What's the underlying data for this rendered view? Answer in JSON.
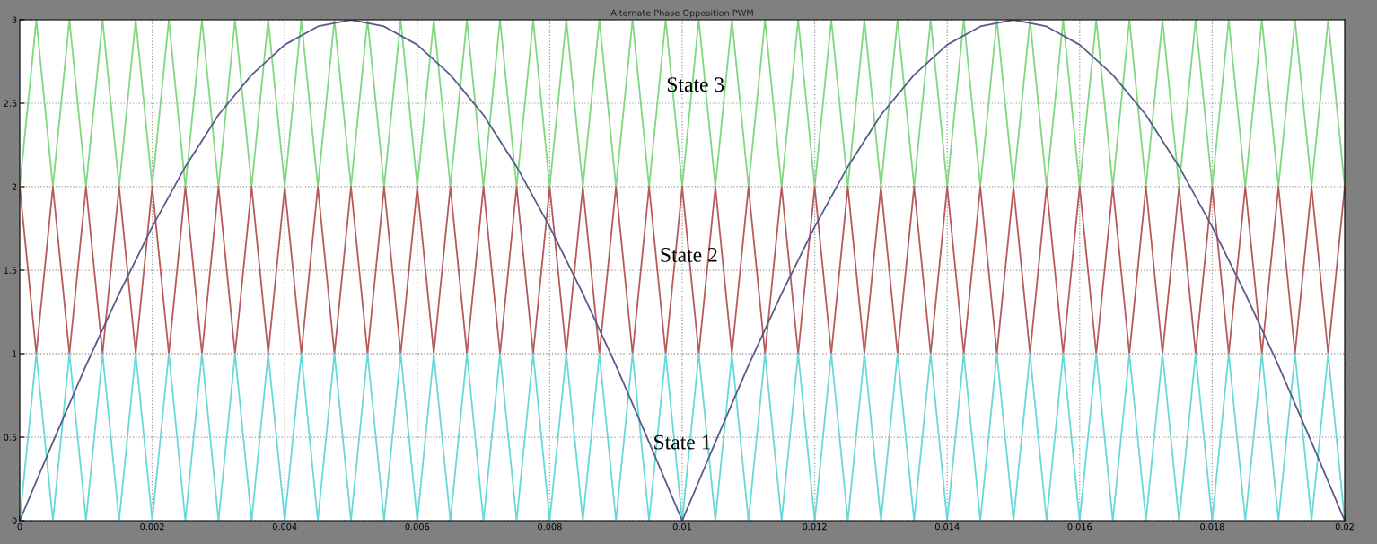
{
  "chart_data": {
    "type": "line",
    "title": "Alternate Phase Opposition PWM",
    "x": [
      0,
      0.00025,
      0.0005,
      0.00075,
      0.001,
      0.00125,
      0.0015,
      0.00175,
      0.002,
      0.00225,
      0.0025,
      0.00275,
      0.003,
      0.00325,
      0.0035,
      0.00375,
      0.004,
      0.00425,
      0.0045,
      0.00475,
      0.005,
      0.00525,
      0.0055,
      0.00575,
      0.006,
      0.00625,
      0.0065,
      0.00675,
      0.007,
      0.00725,
      0.0075,
      0.00775,
      0.008,
      0.00825,
      0.0085,
      0.00875,
      0.009,
      0.00925,
      0.0095,
      0.00975,
      0.01,
      0.01025,
      0.0105,
      0.01075,
      0.011,
      0.01125,
      0.0115,
      0.01175,
      0.012,
      0.01225,
      0.0125,
      0.01275,
      0.013,
      0.01325,
      0.0135,
      0.01375,
      0.014,
      0.01425,
      0.0145,
      0.01475,
      0.015,
      0.01525,
      0.0155,
      0.01575,
      0.016,
      0.01625,
      0.0165,
      0.01675,
      0.017,
      0.01725,
      0.0175,
      0.01775,
      0.018,
      0.01825,
      0.0185,
      0.01875,
      0.019,
      0.01925,
      0.0195,
      0.01975,
      0.02
    ],
    "series": [
      {
        "color": "#7fd87f",
        "values": [
          2,
          3,
          2,
          3,
          2,
          3,
          2,
          3,
          2,
          3,
          2,
          3,
          2,
          3,
          2,
          3,
          2,
          3,
          2,
          3,
          2,
          3,
          2,
          3,
          2,
          3,
          2,
          3,
          2,
          3,
          2,
          3,
          2,
          3,
          2,
          3,
          2,
          3,
          2,
          3,
          2,
          3,
          2,
          3,
          2,
          3,
          2,
          3,
          2,
          3,
          2,
          3,
          2,
          3,
          2,
          3,
          2,
          3,
          2,
          3,
          2,
          3,
          2,
          3,
          2,
          3,
          2,
          3,
          2,
          3,
          2,
          3,
          2,
          3,
          2,
          3,
          2,
          3,
          2,
          3,
          2
        ]
      },
      {
        "color": "#b65a5a",
        "values": [
          2,
          1,
          2,
          1,
          2,
          1,
          2,
          1,
          2,
          1,
          2,
          1,
          2,
          1,
          2,
          1,
          2,
          1,
          2,
          1,
          2,
          1,
          2,
          1,
          2,
          1,
          2,
          1,
          2,
          1,
          2,
          1,
          2,
          1,
          2,
          1,
          2,
          1,
          2,
          1,
          2,
          1,
          2,
          1,
          2,
          1,
          2,
          1,
          2,
          1,
          2,
          1,
          2,
          1,
          2,
          1,
          2,
          1,
          2,
          1,
          2,
          1,
          2,
          1,
          2,
          1,
          2,
          1,
          2,
          1,
          2,
          1,
          2,
          1,
          2,
          1,
          2,
          1,
          2,
          1,
          2
        ]
      },
      {
        "color": "#66d8d8",
        "values": [
          0,
          1,
          0,
          1,
          0,
          1,
          0,
          1,
          0,
          1,
          0,
          1,
          0,
          1,
          0,
          1,
          0,
          1,
          0,
          1,
          0,
          1,
          0,
          1,
          0,
          1,
          0,
          1,
          0,
          1,
          0,
          1,
          0,
          1,
          0,
          1,
          0,
          1,
          0,
          1,
          0,
          1,
          0,
          1,
          0,
          1,
          0,
          1,
          0,
          1,
          0,
          1,
          0,
          1,
          0,
          1,
          0,
          1,
          0,
          1,
          0,
          1,
          0,
          1,
          0,
          1,
          0,
          1,
          0,
          1,
          0,
          1,
          0,
          1,
          0,
          1,
          0,
          1,
          0,
          1,
          0
        ]
      },
      {
        "color": "#5a5a8c",
        "x": [
          0,
          0.0005,
          0.001,
          0.0015,
          0.002,
          0.0025,
          0.003,
          0.0035,
          0.004,
          0.0045,
          0.005,
          0.0055,
          0.006,
          0.0065,
          0.007,
          0.0075,
          0.008,
          0.0085,
          0.009,
          0.0095,
          0.01,
          0.0105,
          0.011,
          0.0115,
          0.012,
          0.0125,
          0.013,
          0.0135,
          0.014,
          0.0145,
          0.015,
          0.0155,
          0.016,
          0.0165,
          0.017,
          0.0175,
          0.018,
          0.0185,
          0.019,
          0.0195,
          0.02
        ],
        "values": [
          0,
          0.47,
          0.93,
          1.36,
          1.76,
          2.12,
          2.43,
          2.67,
          2.85,
          2.96,
          3,
          2.96,
          2.85,
          2.67,
          2.43,
          2.12,
          1.76,
          1.36,
          0.93,
          0.47,
          0,
          0.47,
          0.93,
          1.36,
          1.76,
          2.12,
          2.43,
          2.67,
          2.85,
          2.96,
          3,
          2.96,
          2.85,
          2.67,
          2.43,
          2.12,
          1.76,
          1.36,
          0.93,
          0.47,
          0
        ]
      }
    ],
    "annotations": [
      "State 3",
      "State 2",
      "State 1"
    ],
    "xlim": [
      0,
      0.02
    ],
    "ylim": [
      0,
      3
    ],
    "xticks": [
      0,
      0.002,
      0.004,
      0.006,
      0.008,
      0.01,
      0.012,
      0.014,
      0.016,
      0.018,
      0.02
    ],
    "yticks": [
      0,
      0.5,
      1,
      1.5,
      2,
      2.5,
      3
    ],
    "grid": true,
    "marker": "none",
    "line_style": "solid"
  }
}
